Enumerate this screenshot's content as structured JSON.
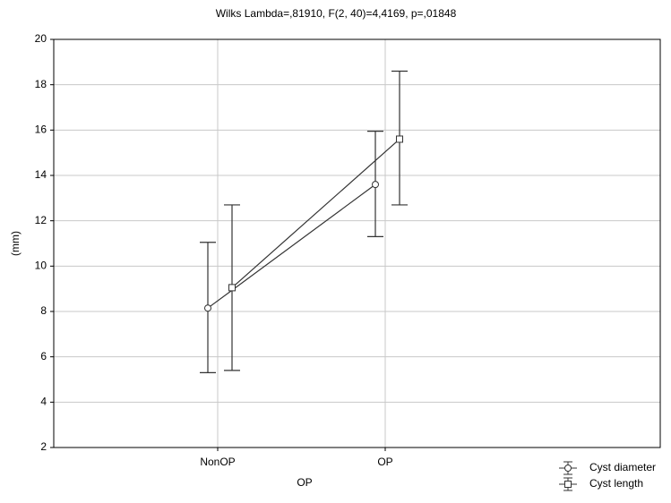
{
  "chart_data": {
    "type": "line",
    "title": "Wilks Lambda=,81910, F(2, 40)=4,4169, p=,01848",
    "x_label": "OP",
    "y_label": "(mm)",
    "categories": [
      "NonOP",
      "OP"
    ],
    "series": [
      {
        "name": "Cyst diameter",
        "color": "#333333",
        "marker": "circle",
        "values": [
          8.15,
          13.6
        ],
        "lower": [
          5.3,
          11.3
        ],
        "upper": [
          11.05,
          15.95
        ]
      },
      {
        "name": "Cyst length",
        "color": "#333333",
        "marker": "square",
        "values": [
          9.05,
          15.6
        ],
        "lower": [
          5.4,
          12.7
        ],
        "upper": [
          12.7,
          18.6
        ]
      }
    ],
    "ylim": [
      2,
      20
    ],
    "yticks": [
      2,
      4,
      6,
      8,
      10,
      12,
      14,
      16,
      18,
      20
    ],
    "grid": true
  }
}
